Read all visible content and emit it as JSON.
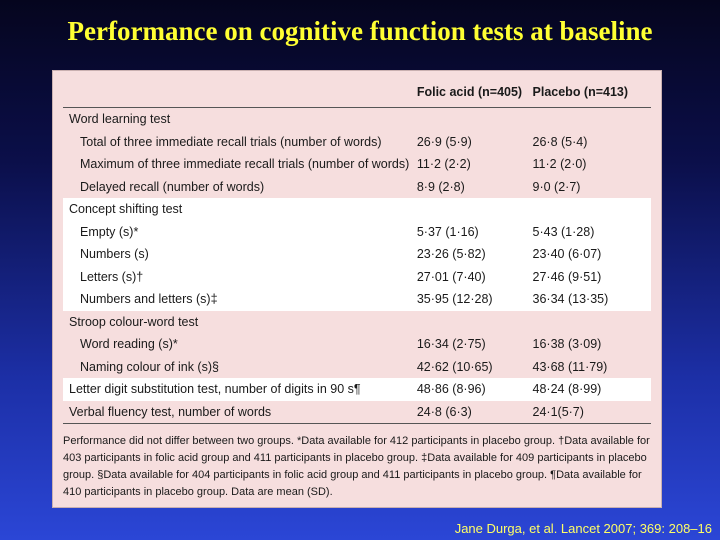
{
  "title": "Performance on cognitive function tests at baseline",
  "table": {
    "headers": [
      "",
      "Folic acid (n=405)",
      "Placebo (n=413)"
    ],
    "rows": [
      {
        "label": "Word learning test",
        "folic": "",
        "placebo": "",
        "indent": false,
        "white": false
      },
      {
        "label": "Total of three immediate recall trials (number of words)",
        "folic": "26·9 (5·9)",
        "placebo": "26·8 (5·4)",
        "indent": true,
        "white": false
      },
      {
        "label": "Maximum of three immediate recall trials (number of words)",
        "folic": "11·2 (2·2)",
        "placebo": "11·2 (2·0)",
        "indent": true,
        "white": false
      },
      {
        "label": "Delayed recall (number of words)",
        "folic": "8·9 (2·8)",
        "placebo": "9·0 (2·7)",
        "indent": true,
        "white": false
      },
      {
        "label": "Concept shifting test",
        "folic": "",
        "placebo": "",
        "indent": false,
        "white": true
      },
      {
        "label": "Empty (s)*",
        "folic": "5·37 (1·16)",
        "placebo": "5·43 (1·28)",
        "indent": true,
        "white": true
      },
      {
        "label": "Numbers (s)",
        "folic": "23·26 (5·82)",
        "placebo": "23·40 (6·07)",
        "indent": true,
        "white": true
      },
      {
        "label": "Letters (s)†",
        "folic": "27·01 (7·40)",
        "placebo": "27·46 (9·51)",
        "indent": true,
        "white": true
      },
      {
        "label": "Numbers and letters (s)‡",
        "folic": "35·95 (12·28)",
        "placebo": "36·34 (13·35)",
        "indent": true,
        "white": true
      },
      {
        "label": "Stroop colour-word test",
        "folic": "",
        "placebo": "",
        "indent": false,
        "white": false
      },
      {
        "label": "Word reading (s)*",
        "folic": "16·34 (2·75)",
        "placebo": "16·38 (3·09)",
        "indent": true,
        "white": false
      },
      {
        "label": "Naming colour of ink (s)§",
        "folic": "42·62 (10·65)",
        "placebo": "43·68 (11·79)",
        "indent": true,
        "white": false
      },
      {
        "label": "Letter digit substitution test, number of digits in 90 s¶",
        "folic": "48·86 (8·96)",
        "placebo": "48·24 (8·99)",
        "indent": false,
        "white": true
      },
      {
        "label": "Verbal fluency test, number of words",
        "folic": "24·8 (6·3)",
        "placebo": "24·1(5·7)",
        "indent": false,
        "white": false
      }
    ]
  },
  "footnote": "Performance did not differ between two groups. *Data available for 412 participants in placebo group. †Data available for 403 participants in folic acid group and 411 participants in placebo group. ‡Data available for 409 participants in placebo group. §Data available for 404 participants in folic acid group and 411 participants in placebo group. ¶Data available for 410 participants in placebo group. Data are mean (SD).",
  "citation": "Jane Durga, et al. Lancet 2007; 369: 208–16"
}
